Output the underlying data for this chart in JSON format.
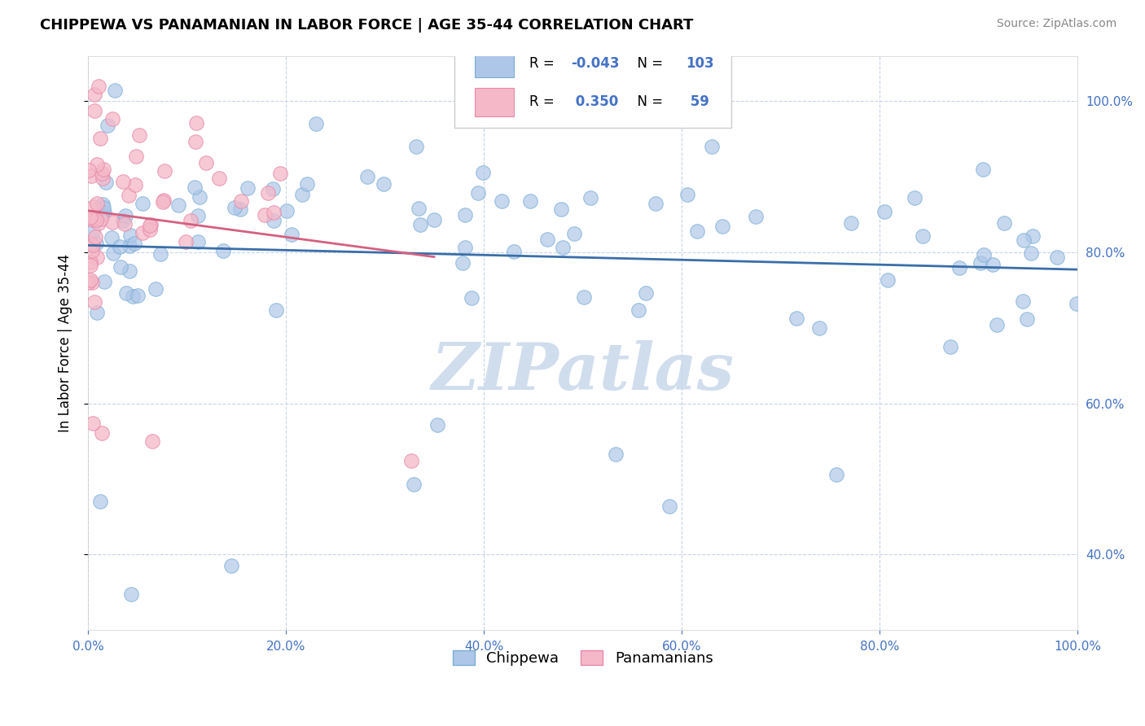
{
  "title": "CHIPPEWA VS PANAMANIAN IN LABOR FORCE | AGE 35-44 CORRELATION CHART",
  "source": "Source: ZipAtlas.com",
  "ylabel": "In Labor Force | Age 35-44",
  "xlim": [
    0.0,
    1.0
  ],
  "ylim": [
    0.3,
    1.06
  ],
  "xticks": [
    0.0,
    0.2,
    0.4,
    0.6,
    0.8,
    1.0
  ],
  "yticks": [
    0.4,
    0.6,
    0.8,
    1.0
  ],
  "blue_R": -0.043,
  "blue_N": 103,
  "pink_R": 0.35,
  "pink_N": 59,
  "blue_color": "#aec6e8",
  "blue_edge_color": "#7aaed4",
  "pink_color": "#f4b8c8",
  "pink_edge_color": "#e888a8",
  "blue_line_color": "#3a6ea8",
  "pink_line_color": "#d46080",
  "label_color": "#4472c4",
  "legend_blue_label": "Chippewa",
  "legend_pink_label": "Panamanians",
  "watermark": "ZIPatlas",
  "watermark_color": "#c8d8ea",
  "background_color": "#ffffff",
  "grid_color": "#c8d4e8",
  "blue_seed": 77,
  "pink_seed": 42
}
